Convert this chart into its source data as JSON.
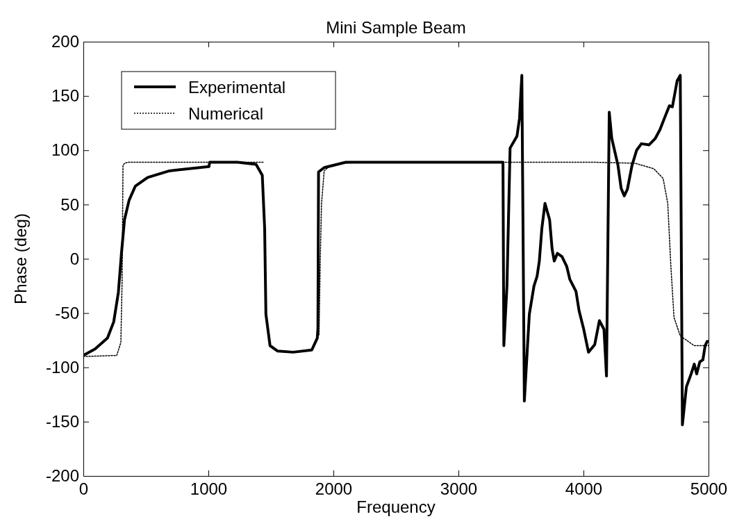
{
  "chart_data": {
    "type": "line",
    "title": "Mini Sample Beam",
    "xlabel": "Frequency",
    "ylabel": "Phase (deg)",
    "xlim": [
      0,
      5000
    ],
    "xticks": [
      0,
      1000,
      2000,
      3000,
      4000,
      5000
    ],
    "ylim": [
      -200,
      200
    ],
    "yticks": [
      -200,
      -150,
      -100,
      -50,
      0,
      50,
      100,
      150,
      200
    ],
    "grid": false,
    "legend": "top left",
    "series": [
      {
        "name": "Experimental",
        "color": "#000000",
        "line_style": "solid",
        "x": [
          0,
          94,
          193,
          243,
          280,
          304,
          329,
          366,
          416,
          515,
          688,
          1005,
          1010,
          1233,
          1381,
          1431,
          1450,
          1460,
          1493,
          1554,
          1678,
          1827,
          1871,
          1876,
          1881,
          1926,
          2099,
          2500,
          3000,
          3356,
          3363,
          3388,
          3413,
          3443,
          3468,
          3488,
          3507,
          3527,
          3567,
          3604,
          3629,
          3647,
          3667,
          3692,
          3729,
          3749,
          3766,
          3791,
          3828,
          3866,
          3891,
          3940,
          3965,
          4002,
          4040,
          4090,
          4127,
          4164,
          4184,
          4206,
          4226,
          4276,
          4301,
          4326,
          4351,
          4388,
          4425,
          4463,
          4525,
          4575,
          4612,
          4649,
          4687,
          4711,
          4749,
          4774,
          4791,
          4823,
          4861,
          4886,
          4905,
          4930,
          4955,
          4973,
          4990
        ],
        "values": [
          -89,
          -83,
          -73,
          -58,
          -31,
          4,
          36,
          54,
          67,
          75,
          81,
          85,
          89,
          89,
          87,
          77,
          28,
          -51,
          -80,
          -85,
          -86,
          -84,
          -73,
          -64,
          80,
          84,
          89,
          89,
          89,
          89,
          -80,
          -25,
          102,
          108,
          113,
          129,
          169,
          -131,
          -51,
          -25,
          -16,
          -2,
          28,
          51,
          36,
          9,
          -2,
          5,
          2,
          -7,
          -19,
          -30,
          -48,
          -65,
          -86,
          -79,
          -57,
          -65,
          -108,
          135,
          111,
          86,
          65,
          58,
          64,
          86,
          100,
          106,
          105,
          111,
          119,
          130,
          141,
          140,
          164,
          169,
          -153,
          -118,
          -106,
          -97,
          -106,
          -95,
          -93,
          -80,
          -76
        ]
      },
      {
        "name": "Numerical",
        "color": "#000000",
        "line_style": "dotted",
        "x": [
          0,
          267,
          300,
          310,
          317,
          330,
          360,
          1000,
          1400,
          1440,
          1450,
          1850,
          1885,
          1895,
          1905,
          1926,
          1975,
          2050,
          2300,
          3000,
          4065,
          4413,
          4562,
          4637,
          4674,
          4699,
          4724,
          4774,
          4886,
          4973,
          5000
        ],
        "values": [
          -90,
          -89,
          -77,
          -20,
          86,
          88,
          89,
          89,
          89,
          89,
          null,
          null,
          -70,
          0,
          51,
          81,
          86,
          88,
          89,
          89,
          89,
          88,
          83,
          74,
          51,
          -7,
          -54,
          -71,
          -80,
          -80,
          -80
        ]
      }
    ]
  }
}
